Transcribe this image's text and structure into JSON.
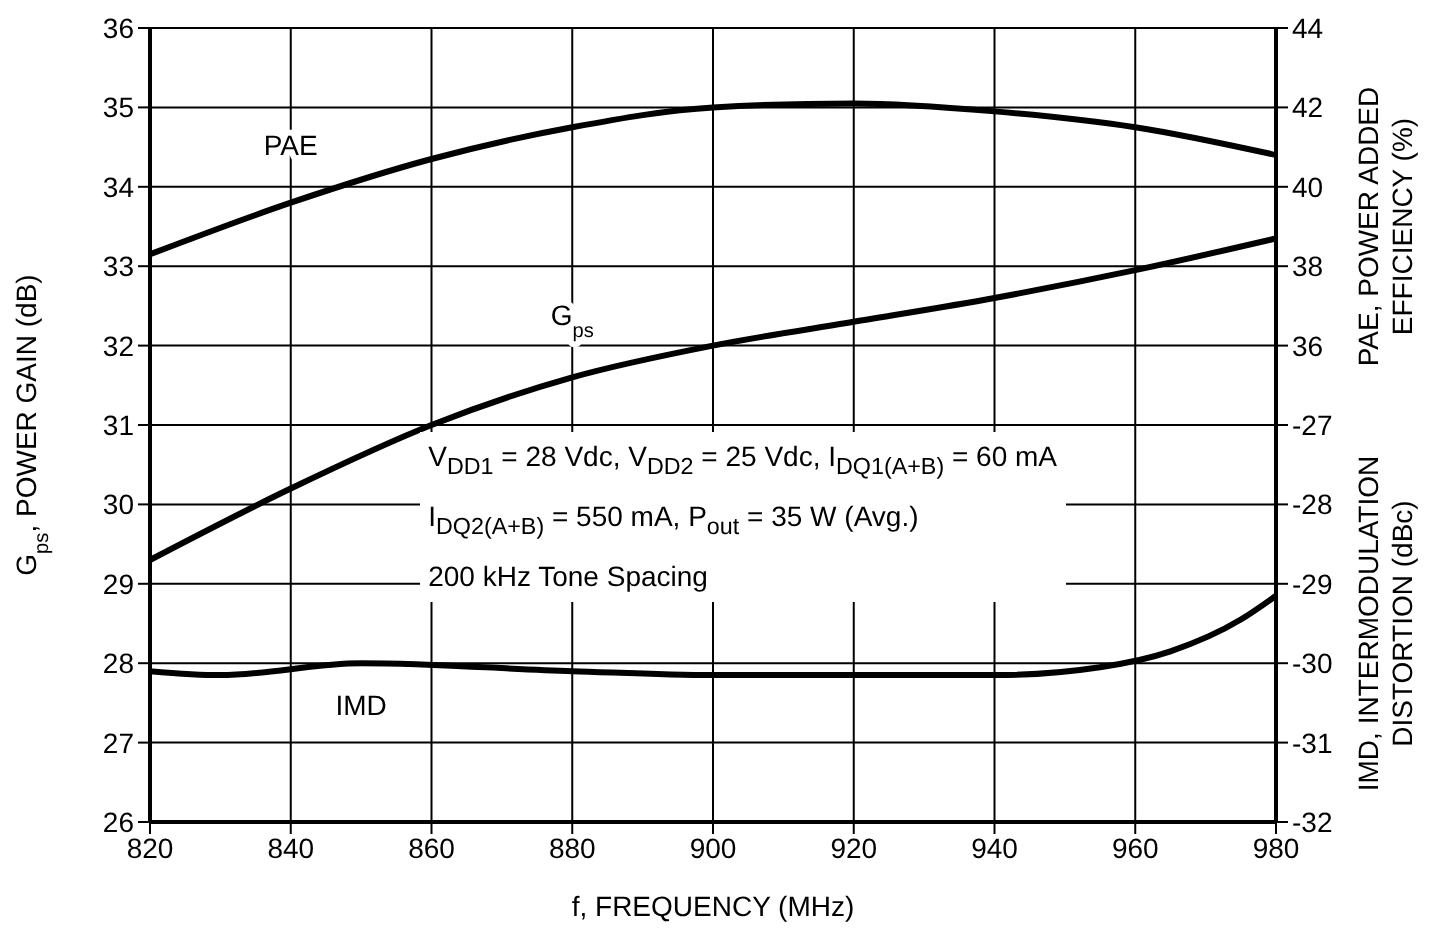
{
  "chart_data": {
    "type": "line",
    "xlabel": "f, FREQUENCY (MHz)",
    "ylabel": "G$_{ps}$, POWER GAIN (dB)",
    "y2label": "PAE, POWER ADDED EFFICIENCY (%)",
    "y3label": "IMD, INTERMODULATION DISTORTION (dBc)",
    "x": [
      820,
      840,
      860,
      880,
      900,
      920,
      940,
      960,
      980
    ],
    "xlim": [
      820,
      980
    ],
    "xticks": [
      820,
      840,
      860,
      880,
      900,
      920,
      940,
      960,
      980
    ],
    "ylim": [
      26,
      36
    ],
    "yticks": [
      26,
      27,
      28,
      29,
      30,
      31,
      32,
      33,
      34,
      35,
      36
    ],
    "y2lim": [
      24,
      44
    ],
    "y2ticks": [
      36,
      38,
      40,
      42,
      44
    ],
    "y3lim": [
      -32,
      -22
    ],
    "y3ticks": [
      -32,
      -31,
      -30,
      -29,
      -28,
      -27
    ],
    "grid": true,
    "marker": "none",
    "line_style": "solid",
    "annotations": [
      "V$_{DD1}$ = 28 Vdc, V$_{DD2}$ = 25 Vdc, I$_{DQ1(A+B)}$ = 60 mA",
      "I$_{DQ2(A+B)}$ = 550 mA, P$_{out}$ = 35 W (Avg.)",
      "200 kHz Tone Spacing"
    ],
    "series": [
      {
        "name": "PAE",
        "color": "#000000",
        "axis": "y2",
        "values": [
          38.3,
          39.6,
          40.7,
          41.5,
          42.0,
          42.1,
          41.9,
          41.5,
          40.8
        ]
      },
      {
        "name": "G$_{ps}$",
        "color": "#000000",
        "values": [
          29.3,
          30.2,
          31.0,
          31.6,
          32.0,
          32.3,
          32.6,
          32.95,
          33.35
        ]
      },
      {
        "name": "IMD",
        "color": "#000000",
        "axis": "y3",
        "x": [
          820,
          830,
          850,
          880,
          900,
          940,
          955,
          965,
          975,
          980
        ],
        "values": [
          -30.1,
          -30.15,
          -30.0,
          -30.1,
          -30.15,
          -30.15,
          -30.05,
          -29.85,
          -29.45,
          -29.15
        ]
      }
    ]
  }
}
